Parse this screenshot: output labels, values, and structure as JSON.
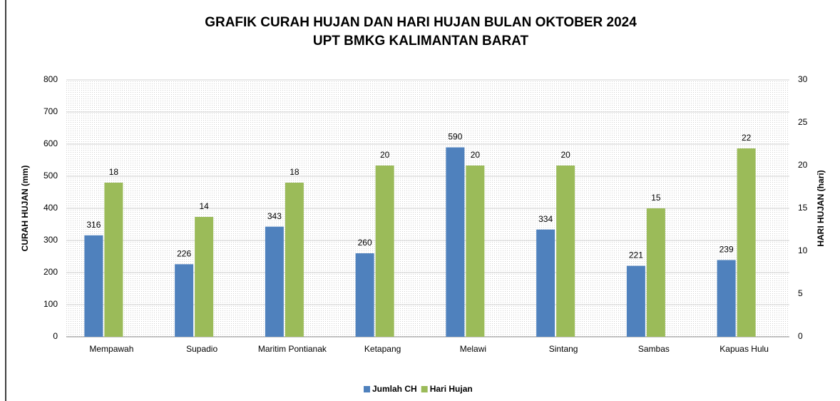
{
  "chart_data": {
    "type": "bar",
    "title": "GRAFIK CURAH HUJAN DAN HARI HUJAN BULAN OKTOBER 2024",
    "subtitle": "UPT BMKG KALIMANTAN BARAT",
    "y_label": "CURAH HUJAN (mm)",
    "y2_label": "HARI HUJAN (hari)",
    "categories": [
      "Mempawah",
      "Supadio",
      "Maritim Pontianak",
      "Ketapang",
      "Melawi",
      "Sintang",
      "Sambas",
      "Kapuas Hulu"
    ],
    "series": [
      {
        "name": "Jumlah CH",
        "color": "#4f81bd",
        "values": [
          316,
          226,
          343,
          260,
          590,
          334,
          221,
          239
        ]
      },
      {
        "name": "Hari Hujan",
        "color": "#9bbb59",
        "axis": "y2",
        "values": [
          18,
          14,
          18,
          20,
          20,
          20,
          15,
          22
        ]
      }
    ],
    "ylim": [
      0,
      800
    ],
    "yticks": [
      0,
      100,
      200,
      300,
      400,
      500,
      600,
      700,
      800
    ],
    "y2lim": [
      0,
      30
    ],
    "y2ticks": [
      0,
      5,
      10,
      15,
      20,
      25,
      30
    ],
    "grid": true,
    "legend": "bottom"
  }
}
